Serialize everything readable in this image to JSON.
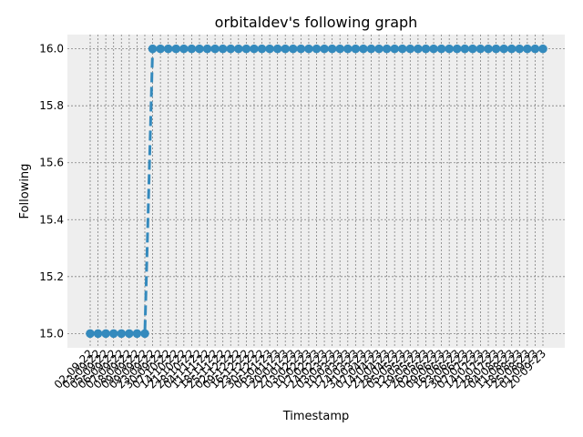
{
  "chart_data": {
    "type": "line",
    "title": "orbitaldev's following graph",
    "xlabel": "Timestamp",
    "ylabel": "Following",
    "ylim": [
      14.95,
      16.05
    ],
    "yticks": [
      15.0,
      15.2,
      15.4,
      15.6,
      15.8,
      16.0
    ],
    "ytick_labels": [
      "15.0",
      "15.2",
      "15.4",
      "15.6",
      "15.8",
      "16.0"
    ],
    "grid": true,
    "legend": "none",
    "x": [
      "02-09-22",
      "03-09-22",
      "05-09-22",
      "06-09-22",
      "07-09-22",
      "08-09-22",
      "09-09-22",
      "09-09-22",
      "23-09-22",
      "30-09-22",
      "07-10-22",
      "14-10-22",
      "21-10-22",
      "28-10-22",
      "04-11-22",
      "11-11-22",
      "18-11-22",
      "25-11-22",
      "02-12-22",
      "09-12-22",
      "16-12-22",
      "23-12-22",
      "30-12-22",
      "06-01-23",
      "13-01-23",
      "20-01-23",
      "27-01-23",
      "03-02-23",
      "10-02-23",
      "17-02-23",
      "24-02-23",
      "03-03-23",
      "10-03-23",
      "17-03-23",
      "24-03-23",
      "31-03-23",
      "07-04-23",
      "14-04-23",
      "21-04-23",
      "28-04-23",
      "05-05-23",
      "12-05-23",
      "19-05-23",
      "26-05-23",
      "02-06-23",
      "09-06-23",
      "16-06-23",
      "23-06-23",
      "30-06-23",
      "07-07-23",
      "14-07-23",
      "21-07-23",
      "28-07-23",
      "04-08-23",
      "11-08-23",
      "18-08-23",
      "25-08-23",
      "01-09-23",
      "20-09-23"
    ],
    "series": [
      {
        "values": [
          15,
          15,
          15,
          15,
          15,
          15,
          15,
          15,
          16,
          16,
          16,
          16,
          16,
          16,
          16,
          16,
          16,
          16,
          16,
          16,
          16,
          16,
          16,
          16,
          16,
          16,
          16,
          16,
          16,
          16,
          16,
          16,
          16,
          16,
          16,
          16,
          16,
          16,
          16,
          16,
          16,
          16,
          16,
          16,
          16,
          16,
          16,
          16,
          16,
          16,
          16,
          16,
          16,
          16,
          16,
          16,
          16,
          16,
          16
        ],
        "color": "#348ABD"
      }
    ],
    "colors": {
      "axes_bg": "#EEEEEE",
      "grid": "#808080",
      "line": "#348ABD"
    }
  }
}
